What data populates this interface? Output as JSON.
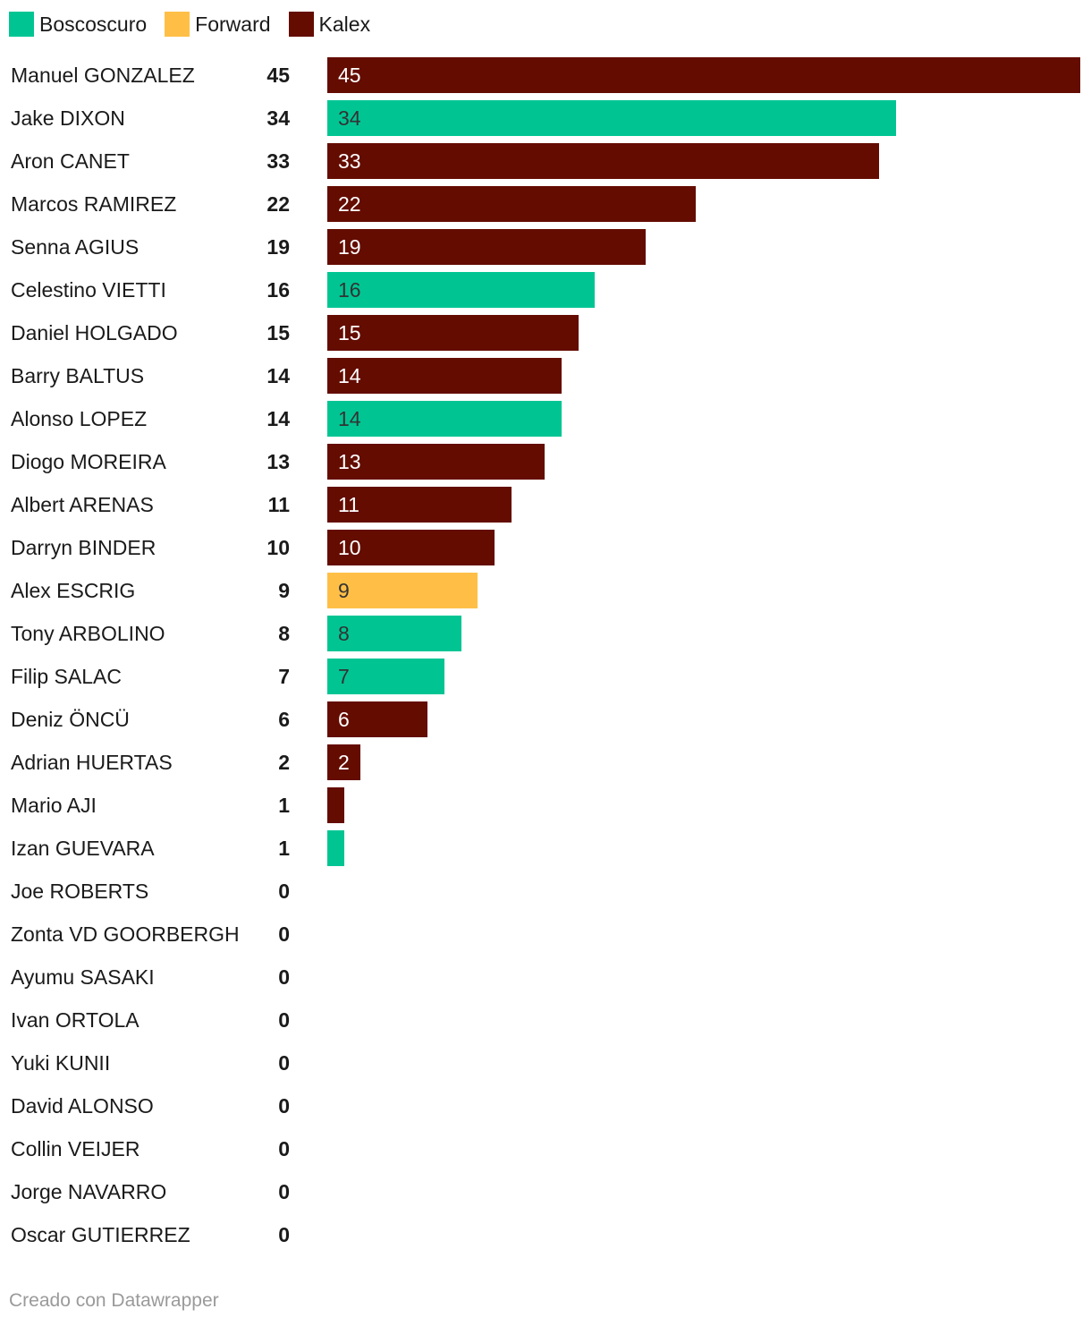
{
  "colors": {
    "Boscoscuro": "#00c593",
    "Forward": "#ffbf47",
    "Kalex": "#640c00"
  },
  "legend": [
    {
      "label": "Boscoscuro",
      "color": "#00c593"
    },
    {
      "label": "Forward",
      "color": "#ffbf47"
    },
    {
      "label": "Kalex",
      "color": "#640c00"
    }
  ],
  "footer": {
    "credit": "Creado con Datawrapper"
  },
  "chart_data": {
    "type": "bar",
    "orientation": "horizontal",
    "xlim": [
      0,
      45
    ],
    "grid": false,
    "legend_position": "top-left",
    "categories": [
      "Manuel GONZALEZ",
      "Jake DIXON",
      "Aron CANET",
      "Marcos RAMIREZ",
      "Senna AGIUS",
      "Celestino VIETTI",
      "Daniel HOLGADO",
      "Barry BALTUS",
      "Alonso LOPEZ",
      "Diogo MOREIRA",
      "Albert ARENAS",
      "Darryn BINDER",
      "Alex ESCRIG",
      "Tony ARBOLINO",
      "Filip SALAC",
      "Deniz ÖNCÜ",
      "Adrian HUERTAS",
      "Mario AJI",
      "Izan GUEVARA",
      "Joe ROBERTS",
      "Zonta VD GOORBERGH",
      "Ayumu SASAKI",
      "Ivan ORTOLA",
      "Yuki KUNII",
      "David ALONSO",
      "Collin VEIJER",
      "Jorge NAVARRO",
      "Oscar GUTIERREZ"
    ],
    "values": [
      45,
      34,
      33,
      22,
      19,
      16,
      15,
      14,
      14,
      13,
      11,
      10,
      9,
      8,
      7,
      6,
      2,
      1,
      1,
      0,
      0,
      0,
      0,
      0,
      0,
      0,
      0,
      0
    ],
    "manufacturers": [
      "Kalex",
      "Boscoscuro",
      "Kalex",
      "Kalex",
      "Kalex",
      "Boscoscuro",
      "Kalex",
      "Kalex",
      "Boscoscuro",
      "Kalex",
      "Kalex",
      "Kalex",
      "Forward",
      "Boscoscuro",
      "Boscoscuro",
      "Kalex",
      "Kalex",
      "Kalex",
      "Boscoscuro",
      "",
      "",
      "",
      "",
      "",
      "",
      "",
      "",
      ""
    ],
    "bar_labels": [
      "45",
      "34",
      "33",
      "22",
      "19",
      "16",
      "15",
      "14",
      "14",
      "13",
      "11",
      "10",
      "9",
      "8",
      "7",
      "6",
      "2",
      "",
      "",
      "",
      "",
      "",
      "",
      "",
      "",
      "",
      "",
      ""
    ],
    "bar_label_colors": [
      "#ffffff",
      "#333333",
      "#ffffff",
      "#ffffff",
      "#ffffff",
      "#333333",
      "#ffffff",
      "#ffffff",
      "#333333",
      "#ffffff",
      "#ffffff",
      "#ffffff",
      "#333333",
      "#333333",
      "#333333",
      "#ffffff",
      "#ffffff",
      "",
      "",
      "",
      "",
      "",
      "",
      "",
      "",
      "",
      "",
      ""
    ]
  }
}
